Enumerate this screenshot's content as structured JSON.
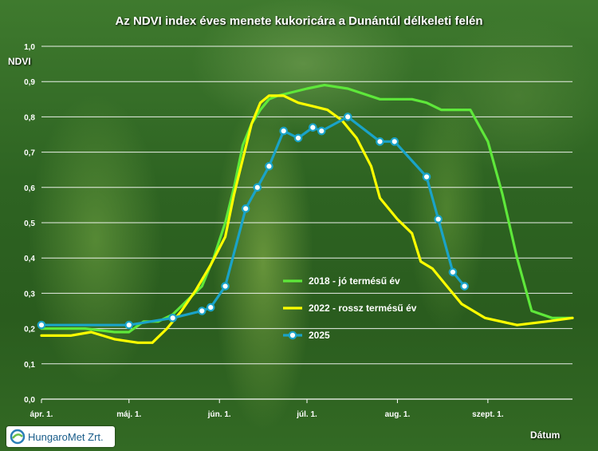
{
  "chart_data": {
    "type": "line",
    "title": "Az NDVI index éves menete kukoricára a Dunántúl délkeleti felén",
    "ylabel": "NDVI",
    "xlabel": "Dátum",
    "ylim": [
      0,
      1
    ],
    "xlim": [
      "2025-04-01",
      "2025-09-30"
    ],
    "y_ticks": [
      "0,0",
      "0,1",
      "0,2",
      "0,3",
      "0,4",
      "0,5",
      "0,6",
      "0,7",
      "0,8",
      "0,9",
      "1,0"
    ],
    "x_ticks": [
      {
        "label": "ápr. 1.",
        "date": "2025-04-01"
      },
      {
        "label": "máj. 1.",
        "date": "2025-05-01"
      },
      {
        "label": "jún. 1.",
        "date": "2025-06-01"
      },
      {
        "label": "júl. 1.",
        "date": "2025-07-01"
      },
      {
        "label": "aug. 1.",
        "date": "2025-08-01"
      },
      {
        "label": "szept. 1.",
        "date": "2025-09-01"
      }
    ],
    "grid": true,
    "legend_position": "bottom-center",
    "series": [
      {
        "name": "2018 - jó termésű év",
        "color": "#5ee83a",
        "marker": "none",
        "points": [
          [
            "2025-04-01",
            0.2
          ],
          [
            "2025-04-16",
            0.2
          ],
          [
            "2025-04-26",
            0.19
          ],
          [
            "2025-05-01",
            0.19
          ],
          [
            "2025-05-06",
            0.22
          ],
          [
            "2025-05-11",
            0.22
          ],
          [
            "2025-05-16",
            0.24
          ],
          [
            "2025-05-21",
            0.28
          ],
          [
            "2025-05-26",
            0.32
          ],
          [
            "2025-05-30",
            0.4
          ],
          [
            "2025-06-03",
            0.5
          ],
          [
            "2025-06-06",
            0.6
          ],
          [
            "2025-06-09",
            0.72
          ],
          [
            "2025-06-12",
            0.78
          ],
          [
            "2025-06-15",
            0.82
          ],
          [
            "2025-06-18",
            0.85
          ],
          [
            "2025-06-21",
            0.86
          ],
          [
            "2025-06-26",
            0.87
          ],
          [
            "2025-07-01",
            0.88
          ],
          [
            "2025-07-07",
            0.89
          ],
          [
            "2025-07-15",
            0.88
          ],
          [
            "2025-07-26",
            0.85
          ],
          [
            "2025-08-06",
            0.85
          ],
          [
            "2025-08-11",
            0.84
          ],
          [
            "2025-08-16",
            0.82
          ],
          [
            "2025-08-26",
            0.82
          ],
          [
            "2025-09-01",
            0.73
          ],
          [
            "2025-09-06",
            0.58
          ],
          [
            "2025-09-11",
            0.4
          ],
          [
            "2025-09-16",
            0.25
          ],
          [
            "2025-09-23",
            0.23
          ],
          [
            "2025-09-30",
            0.23
          ]
        ]
      },
      {
        "name": "2022 - rossz termésű év",
        "color": "#ffff00",
        "marker": "none",
        "points": [
          [
            "2025-04-01",
            0.18
          ],
          [
            "2025-04-11",
            0.18
          ],
          [
            "2025-04-18",
            0.19
          ],
          [
            "2025-04-26",
            0.17
          ],
          [
            "2025-05-04",
            0.16
          ],
          [
            "2025-05-09",
            0.16
          ],
          [
            "2025-05-14",
            0.2
          ],
          [
            "2025-05-19",
            0.25
          ],
          [
            "2025-05-24",
            0.31
          ],
          [
            "2025-05-29",
            0.38
          ],
          [
            "2025-06-03",
            0.46
          ],
          [
            "2025-06-06",
            0.58
          ],
          [
            "2025-06-09",
            0.68
          ],
          [
            "2025-06-12",
            0.78
          ],
          [
            "2025-06-15",
            0.84
          ],
          [
            "2025-06-18",
            0.86
          ],
          [
            "2025-06-23",
            0.86
          ],
          [
            "2025-06-28",
            0.84
          ],
          [
            "2025-07-03",
            0.83
          ],
          [
            "2025-07-08",
            0.82
          ],
          [
            "2025-07-13",
            0.79
          ],
          [
            "2025-07-18",
            0.74
          ],
          [
            "2025-07-23",
            0.66
          ],
          [
            "2025-07-26",
            0.57
          ],
          [
            "2025-08-01",
            0.51
          ],
          [
            "2025-08-06",
            0.47
          ],
          [
            "2025-08-09",
            0.39
          ],
          [
            "2025-08-13",
            0.37
          ],
          [
            "2025-08-18",
            0.32
          ],
          [
            "2025-08-23",
            0.27
          ],
          [
            "2025-08-31",
            0.23
          ],
          [
            "2025-09-11",
            0.21
          ],
          [
            "2025-09-21",
            0.22
          ],
          [
            "2025-09-30",
            0.23
          ]
        ]
      },
      {
        "name": "2025",
        "color": "#1aa3c8",
        "marker": "circle",
        "points": [
          [
            "2025-04-01",
            0.21
          ],
          [
            "2025-05-01",
            0.21
          ],
          [
            "2025-05-16",
            0.23
          ],
          [
            "2025-05-26",
            0.25
          ],
          [
            "2025-05-29",
            0.26
          ],
          [
            "2025-06-03",
            0.32
          ],
          [
            "2025-06-10",
            0.54
          ],
          [
            "2025-06-14",
            0.6
          ],
          [
            "2025-06-18",
            0.66
          ],
          [
            "2025-06-23",
            0.76
          ],
          [
            "2025-06-28",
            0.74
          ],
          [
            "2025-07-03",
            0.77
          ],
          [
            "2025-07-06",
            0.76
          ],
          [
            "2025-07-15",
            0.8
          ],
          [
            "2025-07-26",
            0.73
          ],
          [
            "2025-07-31",
            0.73
          ],
          [
            "2025-08-11",
            0.63
          ],
          [
            "2025-08-15",
            0.51
          ],
          [
            "2025-08-20",
            0.36
          ],
          [
            "2025-08-24",
            0.32
          ]
        ]
      }
    ]
  },
  "branding": {
    "logo_text": "HungaroMet Zrt."
  }
}
